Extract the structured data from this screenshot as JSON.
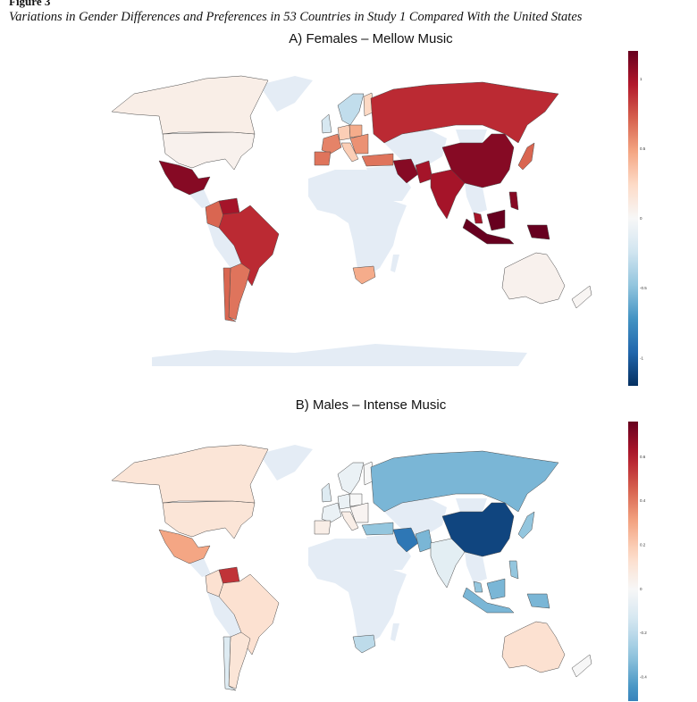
{
  "figure": {
    "label": "Figure 3",
    "caption": "Variations in Gender Differences and Preferences in 53 Countries in Study 1 Compared With the United States"
  },
  "colors": {
    "no_data": "#e4ecf5",
    "border": "#4a4a4a"
  },
  "chart_data": [
    {
      "type": "choropleth",
      "title": "A) Females – Mellow Music",
      "colormap": "RdBu_r",
      "vlim": [
        -1.2,
        1.2
      ],
      "colorbar_range": [
        -1.2,
        1.2
      ],
      "colorbar_ticks": [
        {
          "value": 1,
          "label": "1"
        },
        {
          "value": 0.5,
          "label": "0.5"
        },
        {
          "value": 0,
          "label": "0"
        },
        {
          "value": -0.5,
          "label": "-0.5"
        },
        {
          "value": -1,
          "label": "-1"
        }
      ],
      "countries": [
        {
          "name": "United States",
          "value": 0.05
        },
        {
          "name": "Canada",
          "value": 0.08
        },
        {
          "name": "Mexico",
          "value": 1.1
        },
        {
          "name": "Colombia",
          "value": 0.7
        },
        {
          "name": "Venezuela",
          "value": 1.0
        },
        {
          "name": "Brazil",
          "value": 0.9
        },
        {
          "name": "Argentina",
          "value": 0.65
        },
        {
          "name": "Chile",
          "value": 0.7
        },
        {
          "name": "United Kingdom",
          "value": -0.2
        },
        {
          "name": "Norway/Sweden",
          "value": -0.3
        },
        {
          "name": "Finland",
          "value": 0.25
        },
        {
          "name": "France",
          "value": 0.6
        },
        {
          "name": "Spain",
          "value": 0.65
        },
        {
          "name": "Germany",
          "value": 0.3
        },
        {
          "name": "Poland",
          "value": 0.45
        },
        {
          "name": "Italy",
          "value": 0.3
        },
        {
          "name": "Romania",
          "value": 0.55
        },
        {
          "name": "Turkey",
          "value": 0.65
        },
        {
          "name": "Russia",
          "value": 0.9
        },
        {
          "name": "China",
          "value": 1.1
        },
        {
          "name": "Iran",
          "value": 1.1
        },
        {
          "name": "Pakistan",
          "value": 1.0
        },
        {
          "name": "India",
          "value": 1.0
        },
        {
          "name": "Japan",
          "value": 0.7
        },
        {
          "name": "Philippines",
          "value": 1.1
        },
        {
          "name": "Malaysia",
          "value": 1.0
        },
        {
          "name": "Indonesia",
          "value": 1.2
        },
        {
          "name": "South Africa",
          "value": 0.45
        },
        {
          "name": "Australia",
          "value": 0.05
        },
        {
          "name": "New Zealand",
          "value": 0.02
        }
      ]
    },
    {
      "type": "choropleth",
      "title": "B) Males – Intense Music",
      "colormap": "RdBu_r",
      "vlim": [
        -0.76,
        0.76
      ],
      "colorbar_range": [
        -0.51,
        0.76
      ],
      "colorbar_ticks": [
        {
          "value": 0.6,
          "label": "0.6"
        },
        {
          "value": 0.4,
          "label": "0.4"
        },
        {
          "value": 0.2,
          "label": "0.2"
        },
        {
          "value": 0,
          "label": "0"
        },
        {
          "value": -0.2,
          "label": "-0.2"
        },
        {
          "value": -0.4,
          "label": "-0.4"
        }
      ],
      "countries": [
        {
          "name": "United States",
          "value": 0.1
        },
        {
          "name": "Canada",
          "value": 0.1
        },
        {
          "name": "Mexico",
          "value": 0.3
        },
        {
          "name": "Colombia",
          "value": 0.12
        },
        {
          "name": "Venezuela",
          "value": 0.55
        },
        {
          "name": "Brazil",
          "value": 0.12
        },
        {
          "name": "Argentina",
          "value": 0.1
        },
        {
          "name": "Chile",
          "value": -0.1
        },
        {
          "name": "United Kingdom",
          "value": -0.1
        },
        {
          "name": "Norway/Sweden",
          "value": -0.05
        },
        {
          "name": "Finland",
          "value": 0.0
        },
        {
          "name": "France",
          "value": -0.05
        },
        {
          "name": "Spain",
          "value": 0.05
        },
        {
          "name": "Germany",
          "value": -0.05
        },
        {
          "name": "Poland",
          "value": 0.0
        },
        {
          "name": "Italy",
          "value": 0.05
        },
        {
          "name": "Romania",
          "value": 0.02
        },
        {
          "name": "Turkey",
          "value": -0.3
        },
        {
          "name": "Russia",
          "value": -0.35
        },
        {
          "name": "China",
          "value": -0.7
        },
        {
          "name": "Iran",
          "value": -0.55
        },
        {
          "name": "Pakistan",
          "value": -0.35
        },
        {
          "name": "India",
          "value": -0.08
        },
        {
          "name": "Japan",
          "value": -0.3
        },
        {
          "name": "Philippines",
          "value": -0.3
        },
        {
          "name": "Malaysia",
          "value": -0.3
        },
        {
          "name": "Indonesia",
          "value": -0.35
        },
        {
          "name": "South Africa",
          "value": -0.2
        },
        {
          "name": "Australia",
          "value": 0.12
        },
        {
          "name": "New Zealand",
          "value": 0.0
        }
      ]
    }
  ]
}
